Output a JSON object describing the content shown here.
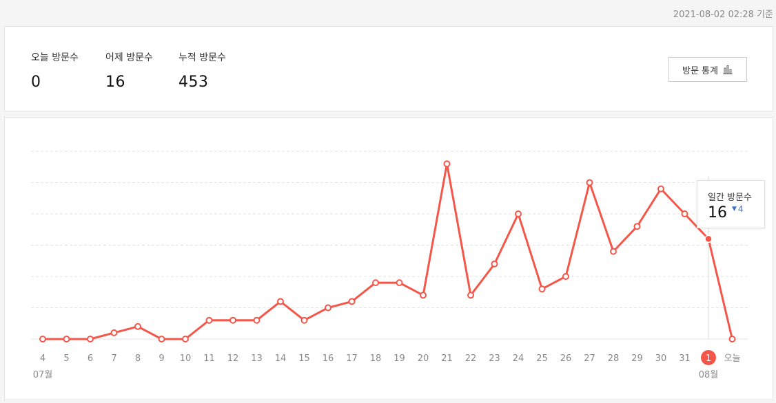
{
  "header": {
    "timestamp": "2021-08-02 02:28 기준"
  },
  "stats": {
    "today_label": "오늘 방문수",
    "today_value": "0",
    "yesterday_label": "어제 방문수",
    "yesterday_value": "16",
    "total_label": "누적 방문수",
    "total_value": "453",
    "button_label": "방문 통계",
    "button_icon": "bar-chart-icon"
  },
  "tooltip": {
    "label": "일간 방문수",
    "value": "16",
    "change_arrow": "▼",
    "change": "4"
  },
  "colors": {
    "line": "#f4574a",
    "highlight_badge": "#f4574a",
    "grid": "#e3e3e3",
    "tick_text": "#888888",
    "change_down": "#3d6fd1"
  },
  "chart_data": {
    "type": "line",
    "categories": [
      "4",
      "5",
      "6",
      "7",
      "8",
      "9",
      "10",
      "11",
      "12",
      "13",
      "14",
      "15",
      "16",
      "17",
      "18",
      "19",
      "20",
      "21",
      "22",
      "23",
      "24",
      "25",
      "26",
      "27",
      "28",
      "29",
      "30",
      "31",
      "1",
      "오늘"
    ],
    "month_labels": [
      {
        "index": 0,
        "text": "07월"
      },
      {
        "index": 28,
        "text": "08월"
      }
    ],
    "series": [
      {
        "values": [
          0,
          0,
          0,
          1,
          2,
          0,
          0,
          3,
          3,
          3,
          6,
          3,
          5,
          6,
          9,
          9,
          7,
          28,
          7,
          12,
          20,
          8,
          10,
          25,
          14,
          18,
          24,
          20,
          16,
          0
        ]
      }
    ],
    "highlight_index": 28,
    "ylim": [
      0,
      30
    ],
    "grid": true,
    "grid_lines": 6
  }
}
